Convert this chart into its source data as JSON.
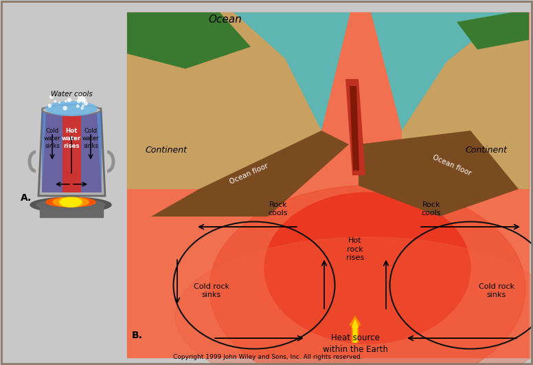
{
  "bg_color": "#c8c8c8",
  "border_color": "#8a7a6a",
  "copyright": "Copyright 1999 John Wiley and Sons, Inc. All rights reserved.",
  "label_A": "A.",
  "label_B": "B.",
  "pot_labels": {
    "water_cools": "Water cools",
    "cold_water_sinks_left": "Cold\nwater\nsinks",
    "hot_water_rises": "Hot\nwater\nrises",
    "cold_water_sinks_right": "Cold\nwater\nsinks"
  },
  "geo_labels": {
    "ocean": "Ocean",
    "continent_left": "Continent",
    "continent_right": "Continent",
    "ocean_floor_left": "Ocean floor",
    "ocean_floor_right": "Ocean floor",
    "rock_cools_left": "Rock\ncools",
    "rock_cools_right": "Rock\ncools",
    "hot_rock_rises": "Hot\nrock\nrises",
    "cold_rock_sinks_left": "Cold rock\nsinks",
    "cold_rock_sinks_right": "Cold rock\nsinks",
    "heat_source": "Heat source\nwithin the Earth"
  },
  "colors": {
    "ocean_water": "#4abfbf",
    "mantle_hot": "#e83020",
    "mantle_warm": "#f07050",
    "continent_top": "#c8a060",
    "ocean_floor_brown": "#7a4a20",
    "vegetation": "#3a7a30",
    "rift_red": "#c03020",
    "arrow_color": "#000000",
    "pot_water_hot": "#cc3333",
    "pot_water_blue": "#4477cc",
    "text_color": "#000000"
  }
}
